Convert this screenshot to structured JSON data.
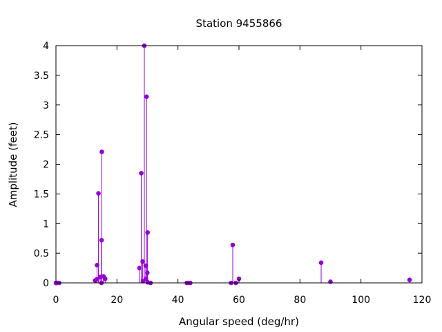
{
  "chart_data": {
    "type": "scatter",
    "style": "impulses-with-points",
    "title": "Station 9455866",
    "xlabel": "Angular speed (deg/hr)",
    "ylabel": "Amplitude (feet)",
    "xlim": [
      0,
      120
    ],
    "ylim": [
      0,
      4
    ],
    "x_ticks": [
      0,
      20,
      40,
      60,
      80,
      100,
      120
    ],
    "x_tick_labels": [
      "0",
      "20",
      "40",
      "60",
      "80",
      "100",
      "120"
    ],
    "y_ticks": [
      0,
      0.5,
      1,
      1.5,
      2,
      2.5,
      3,
      3.5,
      4
    ],
    "y_tick_labels": [
      "0",
      "0.5",
      "1",
      "1.5",
      "2",
      "2.5",
      "3",
      "3.5",
      "4"
    ],
    "grid": false,
    "color": "#9400d3",
    "series": [
      {
        "points": [
          {
            "x": 0.0,
            "y": 0.0
          },
          {
            "x": 0.04,
            "y": 0.0
          },
          {
            "x": 0.08,
            "y": 0.0
          },
          {
            "x": 0.54,
            "y": 0.0
          },
          {
            "x": 1.02,
            "y": 0.0
          },
          {
            "x": 12.85,
            "y": 0.04
          },
          {
            "x": 13.4,
            "y": 0.06
          },
          {
            "x": 13.47,
            "y": 0.3
          },
          {
            "x": 13.94,
            "y": 1.51
          },
          {
            "x": 14.5,
            "y": 0.1
          },
          {
            "x": 14.96,
            "y": 0.72
          },
          {
            "x": 15.04,
            "y": 2.21
          },
          {
            "x": 14.92,
            "y": 0.0
          },
          {
            "x": 15.59,
            "y": 0.11
          },
          {
            "x": 16.14,
            "y": 0.07
          },
          {
            "x": 27.4,
            "y": 0.25
          },
          {
            "x": 27.97,
            "y": 1.85
          },
          {
            "x": 28.44,
            "y": 0.36
          },
          {
            "x": 28.51,
            "y": 0.03
          },
          {
            "x": 28.98,
            "y": 4.0
          },
          {
            "x": 29.45,
            "y": 0.29
          },
          {
            "x": 29.53,
            "y": 0.07
          },
          {
            "x": 29.7,
            "y": 3.14
          },
          {
            "x": 29.96,
            "y": 0.17
          },
          {
            "x": 30.04,
            "y": 0.85
          },
          {
            "x": 30.1,
            "y": 0.01
          },
          {
            "x": 31.02,
            "y": 0.0
          },
          {
            "x": 42.93,
            "y": 0.0
          },
          {
            "x": 43.48,
            "y": 0.0
          },
          {
            "x": 44.03,
            "y": 0.0
          },
          {
            "x": 57.42,
            "y": 0.0
          },
          {
            "x": 57.97,
            "y": 0.64
          },
          {
            "x": 58.98,
            "y": 0.0
          },
          {
            "x": 60.0,
            "y": 0.07
          },
          {
            "x": 86.95,
            "y": 0.34
          },
          {
            "x": 90.0,
            "y": 0.02
          },
          {
            "x": 115.94,
            "y": 0.05
          }
        ]
      }
    ]
  }
}
